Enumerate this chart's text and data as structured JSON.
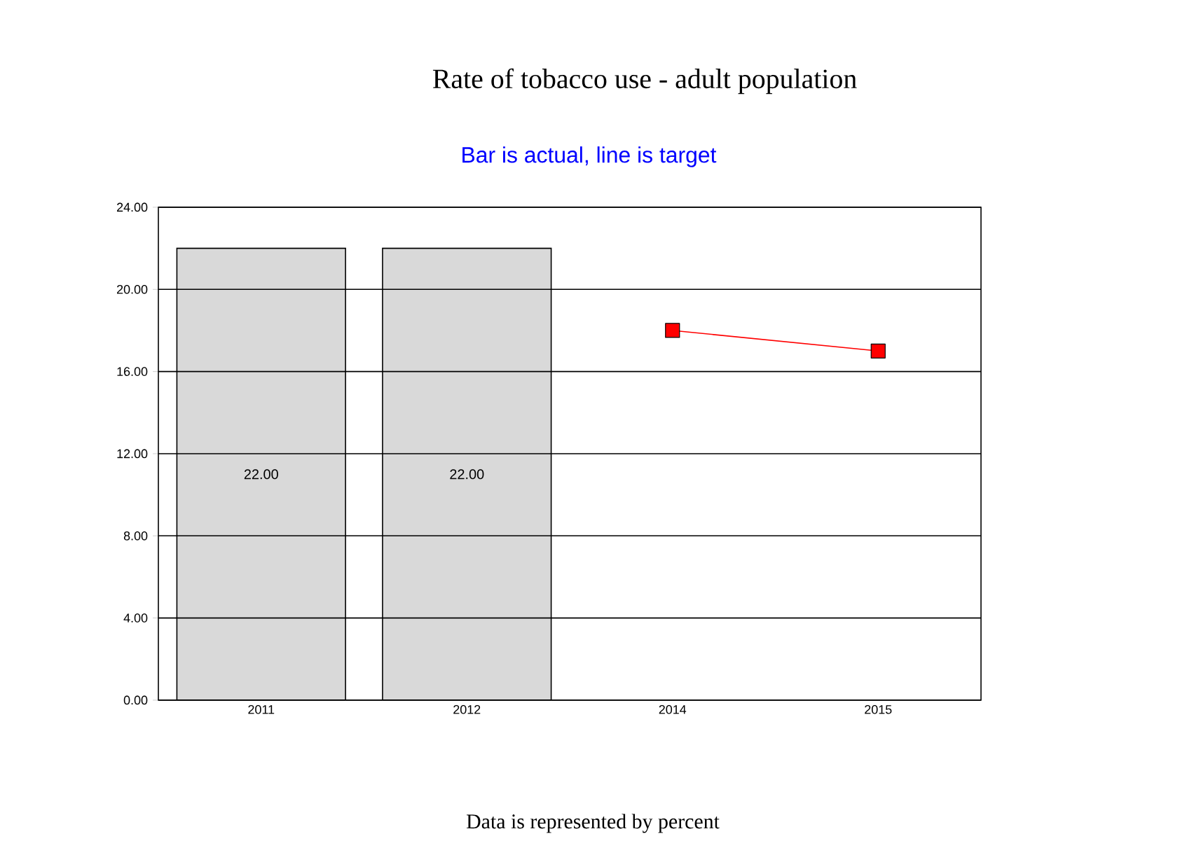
{
  "chart_data": {
    "type": "bar",
    "title": "Rate of tobacco use - adult population",
    "subtitle": "Bar is actual, line is target",
    "categories": [
      "2011",
      "2012",
      "2014",
      "2015"
    ],
    "series": [
      {
        "color": "#d9d9d9",
        "values": [
          22,
          22,
          null,
          null
        ],
        "value_labels": [
          "22.00",
          "22.00",
          null,
          null
        ]
      },
      {
        "type": "line",
        "color": "#ff0000",
        "values": [
          null,
          null,
          18,
          17
        ]
      }
    ],
    "ylim": [
      0,
      24
    ],
    "yticks": [
      {
        "value": 0,
        "label": "0.00"
      },
      {
        "value": 4,
        "label": "4.00"
      },
      {
        "value": 8,
        "label": "8.00"
      },
      {
        "value": 12,
        "label": "12.00"
      },
      {
        "value": 16,
        "label": "16.00"
      },
      {
        "value": 20,
        "label": "20.00"
      },
      {
        "value": 24,
        "label": "24.00"
      }
    ],
    "grid": "y",
    "marker": "square",
    "annotations": [
      "Data is represented by percent"
    ]
  }
}
